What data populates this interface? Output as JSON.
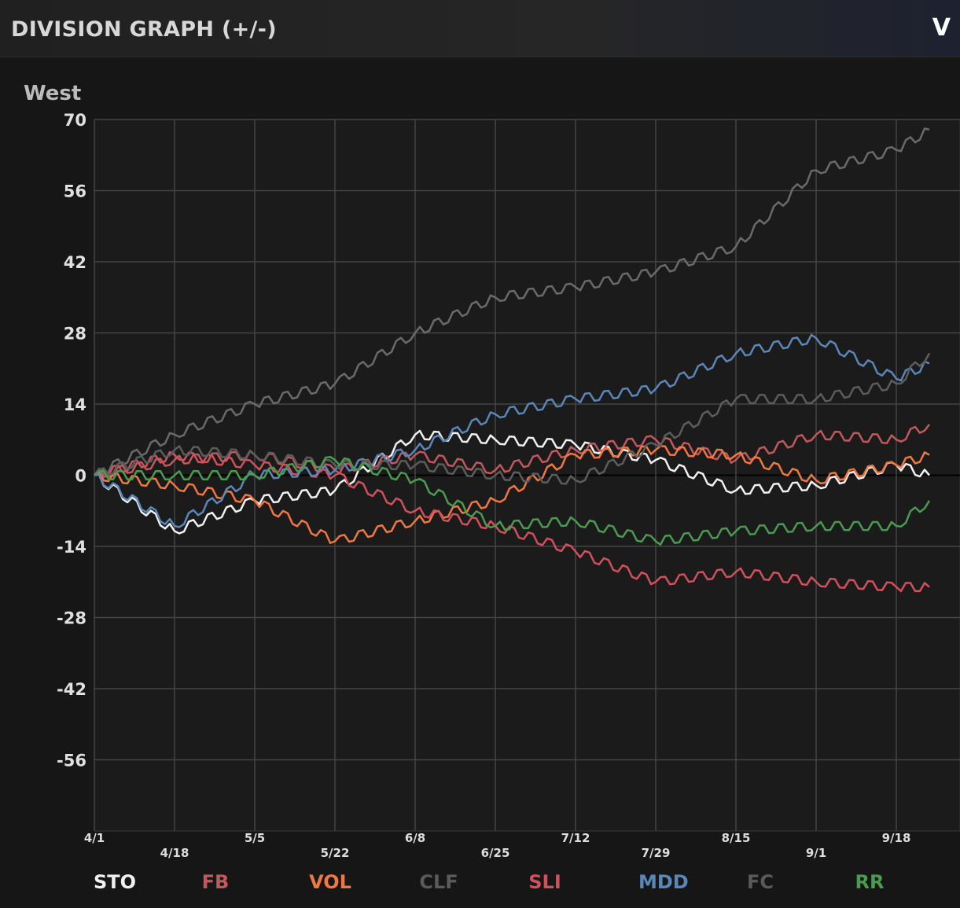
{
  "header": {
    "title": "DIVISION GRAPH (+/-)",
    "collapse_label": "V"
  },
  "division": "West",
  "chart_data": {
    "type": "line",
    "title": "DIVISION GRAPH (+/-)",
    "subtitle": "West",
    "xlabel": "",
    "ylabel": "",
    "x_tick_labels": [
      "4/1",
      "4/18",
      "5/5",
      "5/22",
      "6/8",
      "6/25",
      "7/12",
      "7/29",
      "8/15",
      "9/1",
      "9/18"
    ],
    "x_days": [
      0,
      17,
      34,
      51,
      68,
      85,
      102,
      119,
      136,
      153,
      170,
      177
    ],
    "xlim": [
      0,
      182
    ],
    "y_ticks": [
      70,
      56,
      42,
      28,
      14,
      0,
      -14,
      -28,
      -42,
      -56
    ],
    "ylim": [
      -70,
      70
    ],
    "grid": true,
    "legend_position": "bottom",
    "series": [
      {
        "name": "STO",
        "color": "#f0f0f0",
        "values": [
          0,
          -11,
          -5,
          -3,
          8,
          7,
          6,
          3,
          -3,
          -2,
          2,
          0
        ]
      },
      {
        "name": "FB",
        "color": "#c0585c",
        "values": [
          0,
          3,
          4,
          1,
          4,
          1,
          5,
          7,
          3,
          8,
          7,
          10
        ]
      },
      {
        "name": "VOL",
        "color": "#f07840",
        "values": [
          0,
          -2,
          -5,
          -13,
          -9,
          -5,
          4,
          5,
          4,
          -1,
          2,
          4
        ]
      },
      {
        "name": "CLF",
        "color": "#6a6a6a",
        "values": [
          0,
          8,
          14,
          18,
          28,
          35,
          37,
          40,
          45,
          60,
          64,
          68
        ]
      },
      {
        "name": "SLI",
        "color": "#d0505c",
        "values": [
          0,
          4,
          2,
          0,
          -7,
          -10,
          -15,
          -21,
          -19,
          -21,
          -22,
          -22
        ]
      },
      {
        "name": "MDD",
        "color": "#5a86b8",
        "values": [
          0,
          -10,
          0,
          1,
          5,
          12,
          15,
          17,
          24,
          27,
          19,
          22
        ]
      },
      {
        "name": "FC",
        "color": "#5c5c5c",
        "values": [
          0,
          5,
          4,
          2,
          2,
          0,
          -1,
          6,
          15,
          15,
          18,
          24
        ]
      },
      {
        "name": "RR",
        "color": "#4a9a50",
        "values": [
          0,
          0,
          0,
          3,
          -1,
          -10,
          -9,
          -13,
          -11,
          -10,
          -10,
          -5
        ]
      }
    ]
  }
}
